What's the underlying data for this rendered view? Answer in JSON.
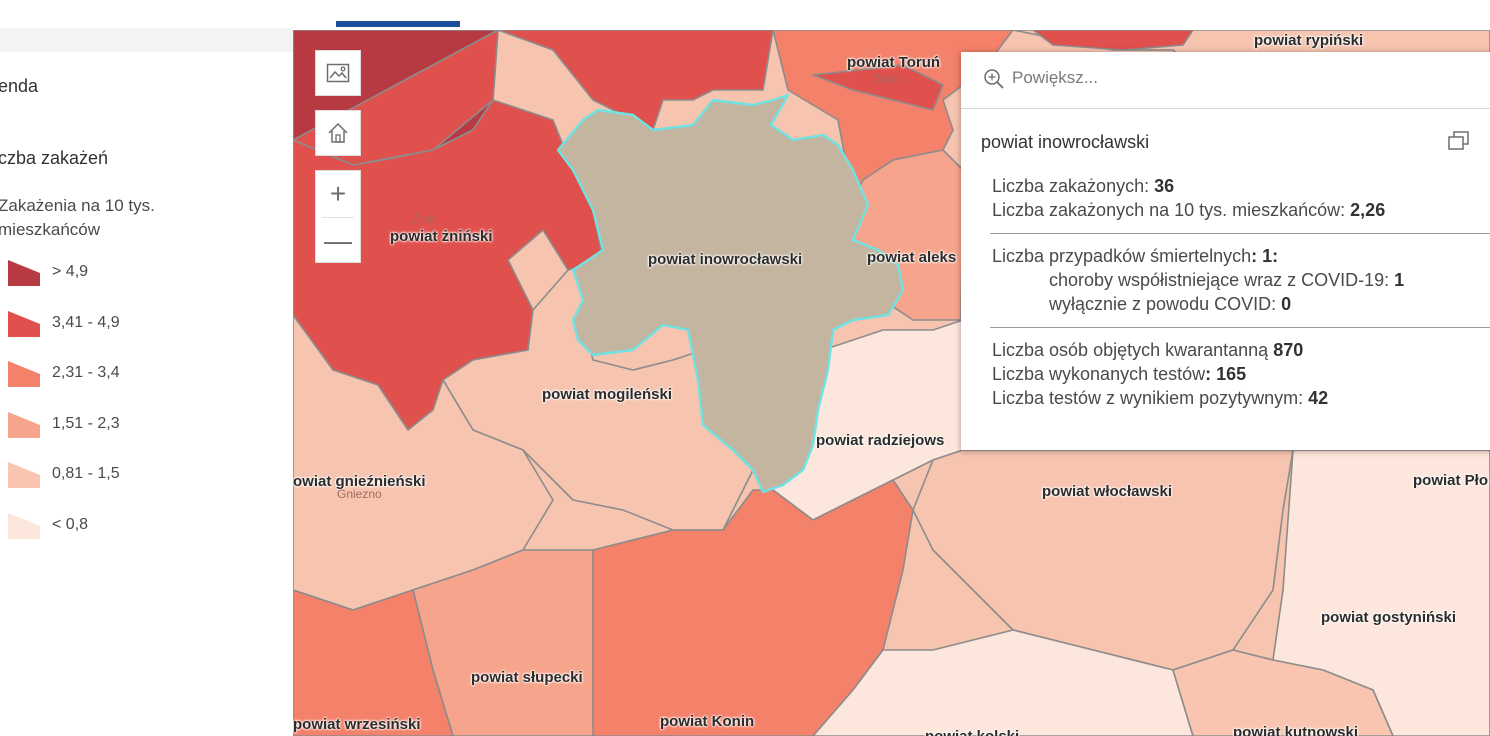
{
  "legend": {
    "title": "enda",
    "layer_title": "czba zakażeń",
    "field_label": "Zakażenia na 10 tys. mieszkańców",
    "items": [
      {
        "label": "> 4,9",
        "color": "#b73a42"
      },
      {
        "label": "3,41 - 4,9",
        "color": "#e0504c"
      },
      {
        "label": "2,31 - 3,4",
        "color": "#f4816a"
      },
      {
        "label": "1,51 - 2,3",
        "color": "#f7a48c"
      },
      {
        "label": "0,81 - 1,5",
        "color": "#f9c4b0"
      },
      {
        "label": "< 0,8",
        "color": "#fde6dc"
      }
    ]
  },
  "map_controls": {
    "basemap_icon": "image-icon",
    "home_icon": "home-icon",
    "zoom_in": "+",
    "zoom_out": "—"
  },
  "counties": {
    "rypinski": "powiat rypiński",
    "torun": "powiat Toruń",
    "zninski": "powiat żniński",
    "inowroclawski": "powiat inowrocławski",
    "aleksandrowski": "powiat aleks",
    "mogilenski": "powiat mogileński",
    "radziejowski": "powiat radziejows",
    "gnieznienski": "owiat gnieźnieński",
    "wloclawski": "powiat włocławski",
    "plocki": "powiat Pło",
    "gostyninski": "powiat gostyniński",
    "slupecki": "powiat słupecki",
    "wrzesinski": "powiat wrzesiński",
    "konin": "powiat Konin",
    "kolski": "powiat kolski",
    "kutnowski": "powiat kutnowski"
  },
  "towns": {
    "torun": "Toruń",
    "znin": "Żnin",
    "gniezno": "Gniezno"
  },
  "popup": {
    "search_placeholder": "Powiększ",
    "ellipsis": "...",
    "title": "powiat inowrocławski",
    "cases_label": "Liczba zakażonych: ",
    "cases_value": "36",
    "rate_label": "Liczba zakażonych na 10 tys. mieszkańców: ",
    "rate_value": "2,26",
    "deaths_label": "Liczba przypadków śmiertelnych",
    "deaths_value": ": 1:",
    "comorb_label": "choroby współistniejące wraz z COVID-19: ",
    "comorb_value": "1",
    "covid_only_label": "wyłącznie z powodu COVID: ",
    "covid_only_value": "0",
    "quarantine_label": "Liczba osób objętych kwarantanną ",
    "quarantine_value": "870",
    "tests_label": "Liczba wykonanych testów",
    "tests_value": ": 165",
    "positive_label": "Liczba testów z wynikiem pozytywnym: ",
    "positive_value": "42"
  },
  "colors": {
    "selected_fill": "#c3b5a0",
    "selected_outline": "#6fe3e3",
    "accent": "#1b4f9c"
  }
}
